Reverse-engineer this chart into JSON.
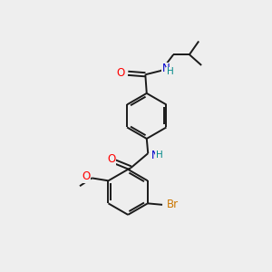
{
  "background_color": "#eeeeee",
  "bond_color": "#1a1a1a",
  "atom_colors": {
    "O": "#ff0000",
    "N": "#0000cc",
    "Br": "#cc7700",
    "H": "#008888",
    "C": "#1a1a1a"
  },
  "font_size": 8.5,
  "lw": 1.4
}
